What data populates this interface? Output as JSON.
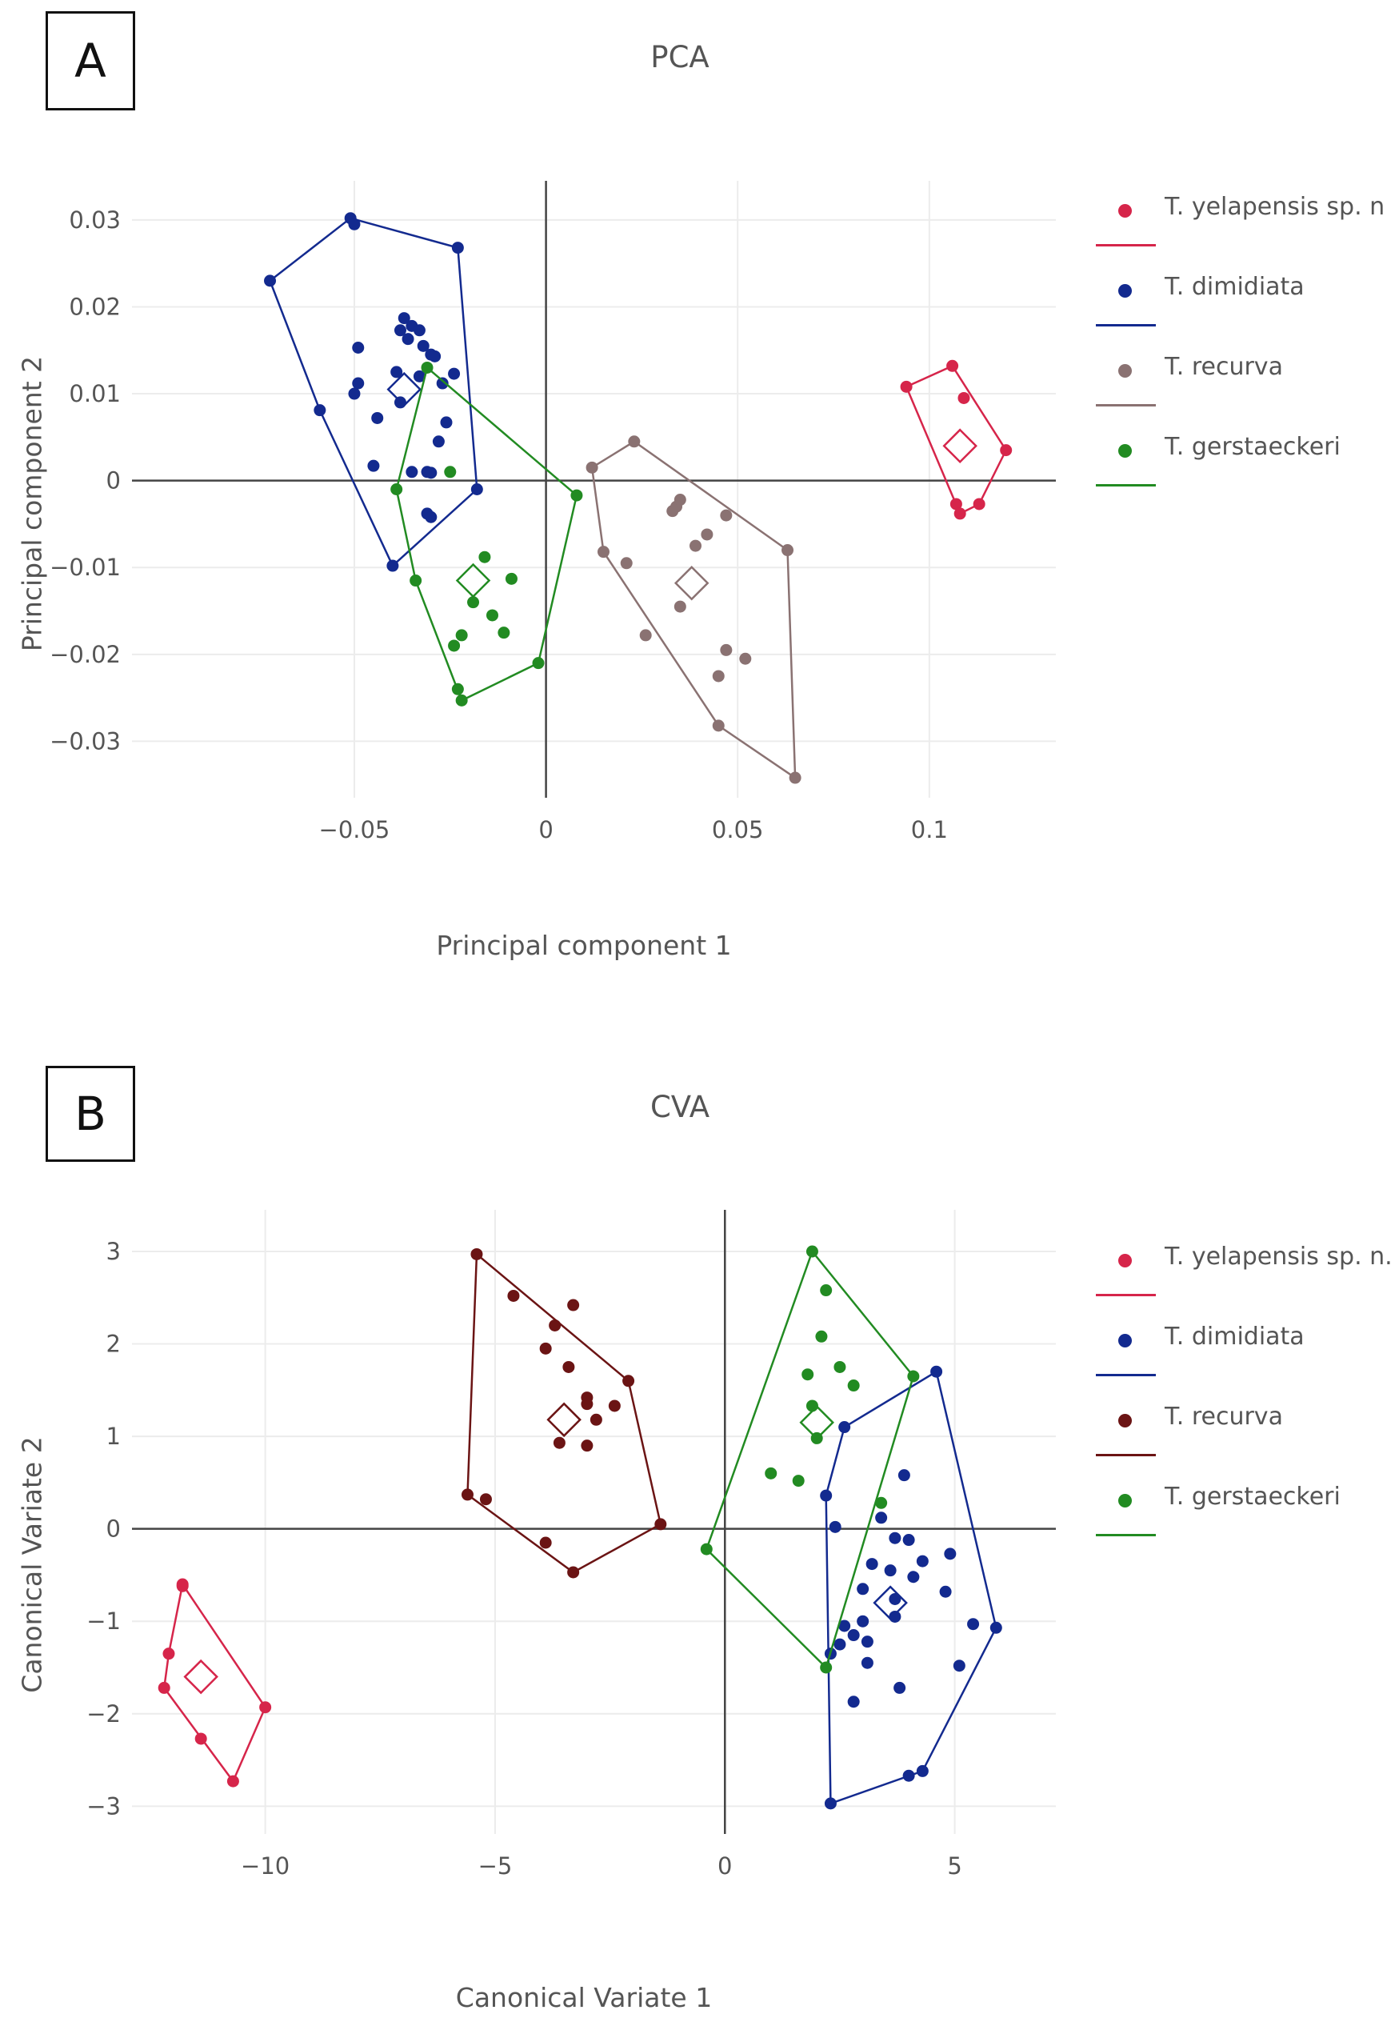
{
  "chart_data": [
    {
      "id": "A",
      "type": "scatter",
      "panel_label": "A",
      "title": "PCA",
      "xlabel": "Principal component 1",
      "ylabel": "Principal component 2",
      "xlim": [
        -0.108,
        0.133
      ],
      "ylim": [
        -0.0365,
        0.0345
      ],
      "xticks": [
        -0.05,
        0,
        0.05,
        0.1
      ],
      "xtick_labels": [
        "−0.05",
        "0",
        "0.05",
        "0.1"
      ],
      "yticks": [
        -0.03,
        -0.02,
        -0.01,
        0,
        0.01,
        0.02,
        0.03
      ],
      "ytick_labels": [
        "−0.03",
        "−0.02",
        "−0.01",
        "0",
        "0.01",
        "0.02",
        "0.03"
      ],
      "legend_position": "right",
      "series": [
        {
          "name": "T. yelapensis sp. n",
          "color": "#d6254a",
          "points": [
            [
              0.094,
              0.0108
            ],
            [
              0.106,
              0.0132
            ],
            [
              0.109,
              0.0095
            ],
            [
              0.12,
              0.0035
            ],
            [
              0.113,
              -0.0027
            ],
            [
              0.107,
              -0.0027
            ],
            [
              0.108,
              -0.0038
            ]
          ],
          "hull": [
            [
              0.094,
              0.0108
            ],
            [
              0.106,
              0.0132
            ],
            [
              0.12,
              0.0035
            ],
            [
              0.113,
              -0.0027
            ],
            [
              0.108,
              -0.0038
            ]
          ],
          "centroid": [
            0.108,
            0.004
          ]
        },
        {
          "name": "T. dimidiata",
          "color": "#132a8f",
          "points": [
            [
              -0.072,
              0.023
            ],
            [
              -0.051,
              0.0302
            ],
            [
              -0.05,
              0.0295
            ],
            [
              -0.023,
              0.0268
            ],
            [
              -0.059,
              0.0081
            ],
            [
              -0.049,
              0.0153
            ],
            [
              -0.049,
              0.0112
            ],
            [
              -0.05,
              0.01
            ],
            [
              -0.037,
              0.0187
            ],
            [
              -0.035,
              0.0178
            ],
            [
              -0.038,
              0.0173
            ],
            [
              -0.033,
              0.0173
            ],
            [
              -0.036,
              0.0163
            ],
            [
              -0.032,
              0.0155
            ],
            [
              -0.03,
              0.0145
            ],
            [
              -0.029,
              0.0143
            ],
            [
              -0.024,
              0.0123
            ],
            [
              -0.039,
              0.0125
            ],
            [
              -0.033,
              0.012
            ],
            [
              -0.027,
              0.0112
            ],
            [
              -0.026,
              0.0067
            ],
            [
              -0.038,
              0.009
            ],
            [
              -0.044,
              0.0072
            ],
            [
              -0.028,
              0.0045
            ],
            [
              -0.045,
              0.0017
            ],
            [
              -0.035,
              0.001
            ],
            [
              -0.031,
              0.001
            ],
            [
              -0.03,
              0.0009
            ],
            [
              -0.031,
              -0.0038
            ],
            [
              -0.03,
              -0.0042
            ],
            [
              -0.018,
              -0.001
            ],
            [
              -0.04,
              -0.0098
            ]
          ],
          "hull": [
            [
              -0.072,
              0.023
            ],
            [
              -0.051,
              0.0302
            ],
            [
              -0.023,
              0.0268
            ],
            [
              -0.018,
              -0.001
            ],
            [
              -0.04,
              -0.0098
            ],
            [
              -0.059,
              0.0081
            ]
          ],
          "centroid": [
            -0.037,
            0.0105
          ]
        },
        {
          "name": "T. recurva",
          "color": "#8a7272",
          "points": [
            [
              0.012,
              0.0015
            ],
            [
              0.023,
              0.0045
            ],
            [
              0.015,
              -0.0082
            ],
            [
              0.021,
              -0.0095
            ],
            [
              0.034,
              -0.003
            ],
            [
              0.033,
              -0.0035
            ],
            [
              0.035,
              -0.0022
            ],
            [
              0.047,
              -0.004
            ],
            [
              0.042,
              -0.0062
            ],
            [
              0.039,
              -0.0075
            ],
            [
              0.063,
              -0.008
            ],
            [
              0.035,
              -0.0145
            ],
            [
              0.026,
              -0.0178
            ],
            [
              0.047,
              -0.0195
            ],
            [
              0.052,
              -0.0205
            ],
            [
              0.045,
              -0.0225
            ],
            [
              0.045,
              -0.0282
            ],
            [
              0.065,
              -0.0342
            ]
          ],
          "hull": [
            [
              0.012,
              0.0015
            ],
            [
              0.023,
              0.0045
            ],
            [
              0.063,
              -0.008
            ],
            [
              0.065,
              -0.0342
            ],
            [
              0.045,
              -0.0282
            ],
            [
              0.015,
              -0.0082
            ]
          ],
          "centroid": [
            0.038,
            -0.0118
          ]
        },
        {
          "name": "T. gerstaeckeri",
          "color": "#228b22",
          "points": [
            [
              -0.031,
              0.013
            ],
            [
              -0.039,
              -0.001
            ],
            [
              -0.025,
              0.001
            ],
            [
              0.008,
              -0.0017
            ],
            [
              -0.034,
              -0.0115
            ],
            [
              -0.016,
              -0.0088
            ],
            [
              -0.009,
              -0.0113
            ],
            [
              -0.019,
              -0.014
            ],
            [
              -0.014,
              -0.0155
            ],
            [
              -0.011,
              -0.0175
            ],
            [
              -0.022,
              -0.0178
            ],
            [
              -0.024,
              -0.019
            ],
            [
              -0.023,
              -0.024
            ],
            [
              -0.002,
              -0.021
            ],
            [
              -0.022,
              -0.0253
            ]
          ],
          "hull": [
            [
              -0.031,
              0.013
            ],
            [
              0.008,
              -0.0017
            ],
            [
              -0.002,
              -0.021
            ],
            [
              -0.022,
              -0.0253
            ],
            [
              -0.034,
              -0.0115
            ],
            [
              -0.039,
              -0.001
            ]
          ],
          "centroid": [
            -0.019,
            -0.0115
          ]
        }
      ]
    },
    {
      "id": "B",
      "type": "scatter",
      "panel_label": "B",
      "title": "CVA",
      "xlabel": "Canonical Variate 1",
      "ylabel": "Canonical Variate 2",
      "xlim": [
        -12.9,
        7.2
      ],
      "ylim": [
        -3.3,
        3.45
      ],
      "xticks": [
        -10,
        -5,
        0,
        5
      ],
      "xtick_labels": [
        "−10",
        "−5",
        "0",
        "5"
      ],
      "yticks": [
        -3,
        -2,
        -1,
        0,
        1,
        2,
        3
      ],
      "ytick_labels": [
        "−3",
        "−2",
        "−1",
        "0",
        "1",
        "2",
        "3"
      ],
      "legend_position": "right",
      "series": [
        {
          "name": "T. yelapensis sp. n.",
          "color": "#d6254a",
          "points": [
            [
              -11.8,
              -0.6
            ],
            [
              -11.8,
              -0.62
            ],
            [
              -12.1,
              -1.35
            ],
            [
              -12.2,
              -1.72
            ],
            [
              -11.4,
              -2.27
            ],
            [
              -10.0,
              -1.93
            ],
            [
              -10.7,
              -2.73
            ]
          ],
          "hull": [
            [
              -11.8,
              -0.6
            ],
            [
              -10.0,
              -1.93
            ],
            [
              -10.7,
              -2.73
            ],
            [
              -12.2,
              -1.72
            ],
            [
              -12.1,
              -1.35
            ]
          ],
          "centroid": [
            -11.4,
            -1.6
          ]
        },
        {
          "name": "T. dimidiata",
          "color": "#132a8f",
          "points": [
            [
              4.6,
              1.7
            ],
            [
              2.6,
              1.1
            ],
            [
              3.9,
              0.58
            ],
            [
              2.2,
              0.36
            ],
            [
              2.4,
              0.02
            ],
            [
              3.4,
              0.12
            ],
            [
              3.7,
              -0.1
            ],
            [
              4.0,
              -0.12
            ],
            [
              3.2,
              -0.38
            ],
            [
              3.6,
              -0.45
            ],
            [
              4.3,
              -0.35
            ],
            [
              4.1,
              -0.52
            ],
            [
              4.9,
              -0.27
            ],
            [
              4.8,
              -0.68
            ],
            [
              3.0,
              -0.65
            ],
            [
              3.7,
              -0.76
            ],
            [
              3.7,
              -0.95
            ],
            [
              2.6,
              -1.05
            ],
            [
              2.8,
              -1.15
            ],
            [
              3.0,
              -1.0
            ],
            [
              3.1,
              -1.22
            ],
            [
              2.5,
              -1.25
            ],
            [
              2.3,
              -1.35
            ],
            [
              5.4,
              -1.03
            ],
            [
              5.9,
              -1.07
            ],
            [
              3.1,
              -1.45
            ],
            [
              5.1,
              -1.48
            ],
            [
              3.8,
              -1.72
            ],
            [
              2.8,
              -1.87
            ],
            [
              4.3,
              -2.62
            ],
            [
              4.0,
              -2.67
            ],
            [
              2.3,
              -2.97
            ]
          ],
          "hull": [
            [
              4.6,
              1.7
            ],
            [
              5.9,
              -1.07
            ],
            [
              4.3,
              -2.62
            ],
            [
              2.3,
              -2.97
            ],
            [
              2.2,
              0.36
            ],
            [
              2.6,
              1.1
            ]
          ],
          "centroid": [
            3.6,
            -0.8
          ]
        },
        {
          "name": "T. recurva",
          "color": "#6b1414",
          "points": [
            [
              -5.4,
              2.97
            ],
            [
              -4.6,
              2.52
            ],
            [
              -3.7,
              2.2
            ],
            [
              -3.3,
              2.42
            ],
            [
              -3.9,
              1.95
            ],
            [
              -3.4,
              1.75
            ],
            [
              -2.1,
              1.6
            ],
            [
              -3.0,
              1.42
            ],
            [
              -3.0,
              1.35
            ],
            [
              -2.4,
              1.33
            ],
            [
              -2.8,
              1.18
            ],
            [
              -3.6,
              0.93
            ],
            [
              -3.0,
              0.9
            ],
            [
              -5.6,
              0.37
            ],
            [
              -5.2,
              0.32
            ],
            [
              -1.4,
              0.05
            ],
            [
              -3.9,
              -0.15
            ],
            [
              -3.3,
              -0.47
            ]
          ],
          "hull": [
            [
              -5.4,
              2.97
            ],
            [
              -2.1,
              1.6
            ],
            [
              -1.4,
              0.05
            ],
            [
              -3.3,
              -0.47
            ],
            [
              -5.6,
              0.37
            ]
          ],
          "centroid": [
            -3.5,
            1.18
          ]
        },
        {
          "name": "T. gerstaeckeri",
          "color": "#228b22",
          "points": [
            [
              1.9,
              3.0
            ],
            [
              2.2,
              2.58
            ],
            [
              2.1,
              2.08
            ],
            [
              1.8,
              1.67
            ],
            [
              2.5,
              1.75
            ],
            [
              2.8,
              1.55
            ],
            [
              1.9,
              1.33
            ],
            [
              2.0,
              0.98
            ],
            [
              4.1,
              1.65
            ],
            [
              1.0,
              0.6
            ],
            [
              1.6,
              0.52
            ],
            [
              3.4,
              0.28
            ],
            [
              -0.4,
              -0.22
            ],
            [
              2.2,
              -1.5
            ]
          ],
          "hull": [
            [
              1.9,
              3.0
            ],
            [
              4.1,
              1.65
            ],
            [
              2.2,
              -1.5
            ],
            [
              -0.4,
              -0.22
            ]
          ],
          "centroid": [
            2.0,
            1.15
          ]
        }
      ]
    }
  ]
}
